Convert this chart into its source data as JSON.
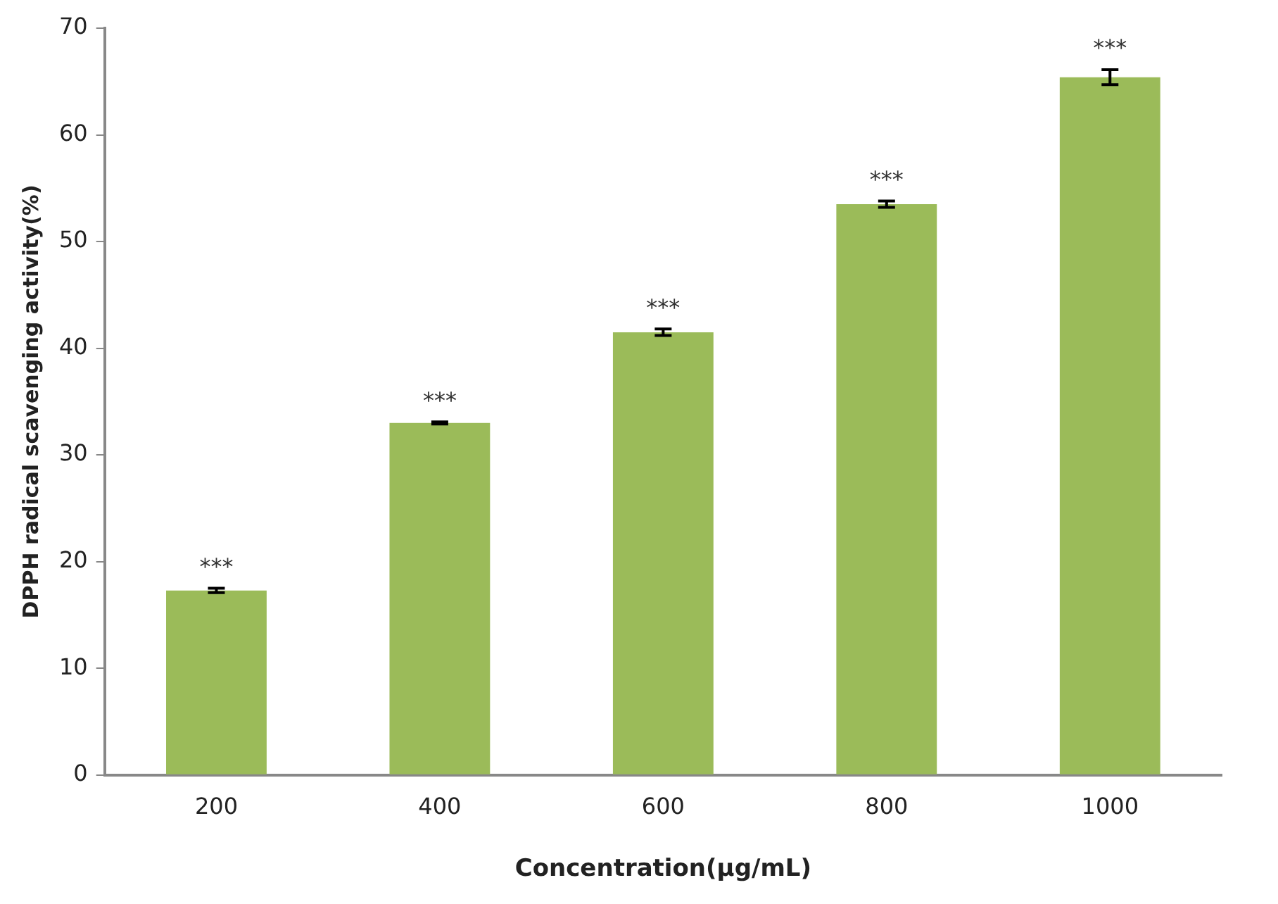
{
  "chart_data": {
    "type": "bar",
    "xlabel": "Concentration(µg/mL)",
    "ylabel": "DPPH radical scavenging activity(%)",
    "categories": [
      "200",
      "400",
      "600",
      "800",
      "1000"
    ],
    "values": [
      17.3,
      33,
      41.5,
      53.5,
      65.4
    ],
    "errors": [
      0.2,
      0.1,
      0.3,
      0.3,
      0.7
    ],
    "color": "#9bbb59",
    "ylim": [
      0,
      70
    ],
    "yticks": [
      0,
      10,
      20,
      30,
      40,
      50,
      60,
      70
    ],
    "grid": false,
    "legend": false,
    "annotations": [
      {
        "text": "***",
        "x": "200",
        "y": 17.5
      },
      {
        "text": "***",
        "x": "400",
        "y": 33.1
      },
      {
        "text": "***",
        "x": "600",
        "y": 41.8
      },
      {
        "text": "***",
        "x": "800",
        "y": 53.8
      },
      {
        "text": "***",
        "x": "1000",
        "y": 66.1
      }
    ]
  }
}
